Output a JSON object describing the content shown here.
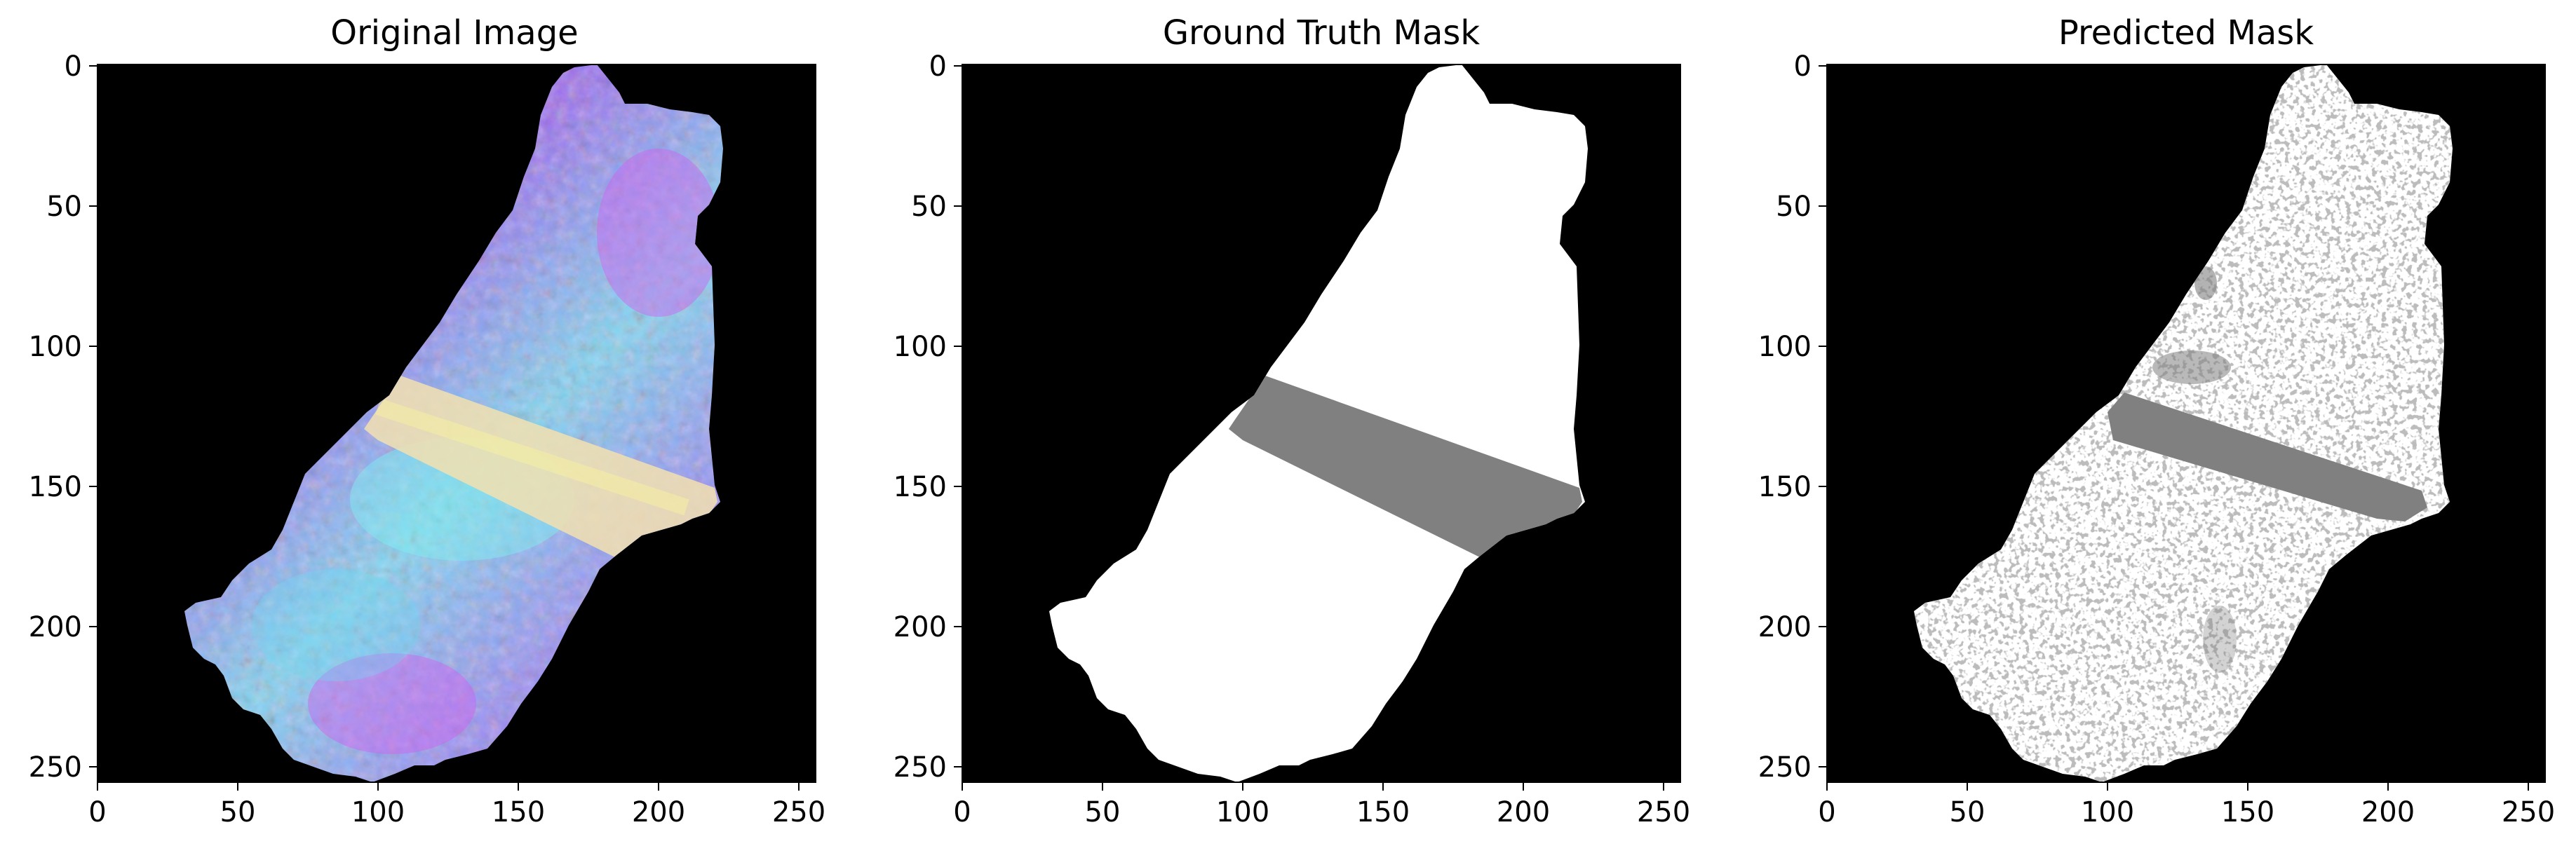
{
  "figure": {
    "panels": [
      {
        "id": "original",
        "title": "Original Image",
        "xticks": [
          "0",
          "50",
          "100",
          "150",
          "200",
          "250"
        ],
        "yticks": [
          "0",
          "50",
          "100",
          "150",
          "200",
          "250"
        ]
      },
      {
        "id": "ground-truth",
        "title": "Ground Truth Mask",
        "xticks": [
          "0",
          "50",
          "100",
          "150",
          "200",
          "250"
        ],
        "yticks": [
          "0",
          "50",
          "100",
          "150",
          "200",
          "250"
        ]
      },
      {
        "id": "predicted",
        "title": "Predicted Mask",
        "xticks": [
          "0",
          "50",
          "100",
          "150",
          "200",
          "250"
        ],
        "yticks": [
          "0",
          "50",
          "100",
          "150",
          "200",
          "250"
        ]
      }
    ],
    "colors": {
      "background": "#000000",
      "foreground": "#ffffff",
      "band": "#808080",
      "image_purple": "#8a6cf2",
      "image_cyan": "#7feaf0",
      "image_magenta": "#d85cf0",
      "image_band": "#f2e6a8"
    }
  }
}
